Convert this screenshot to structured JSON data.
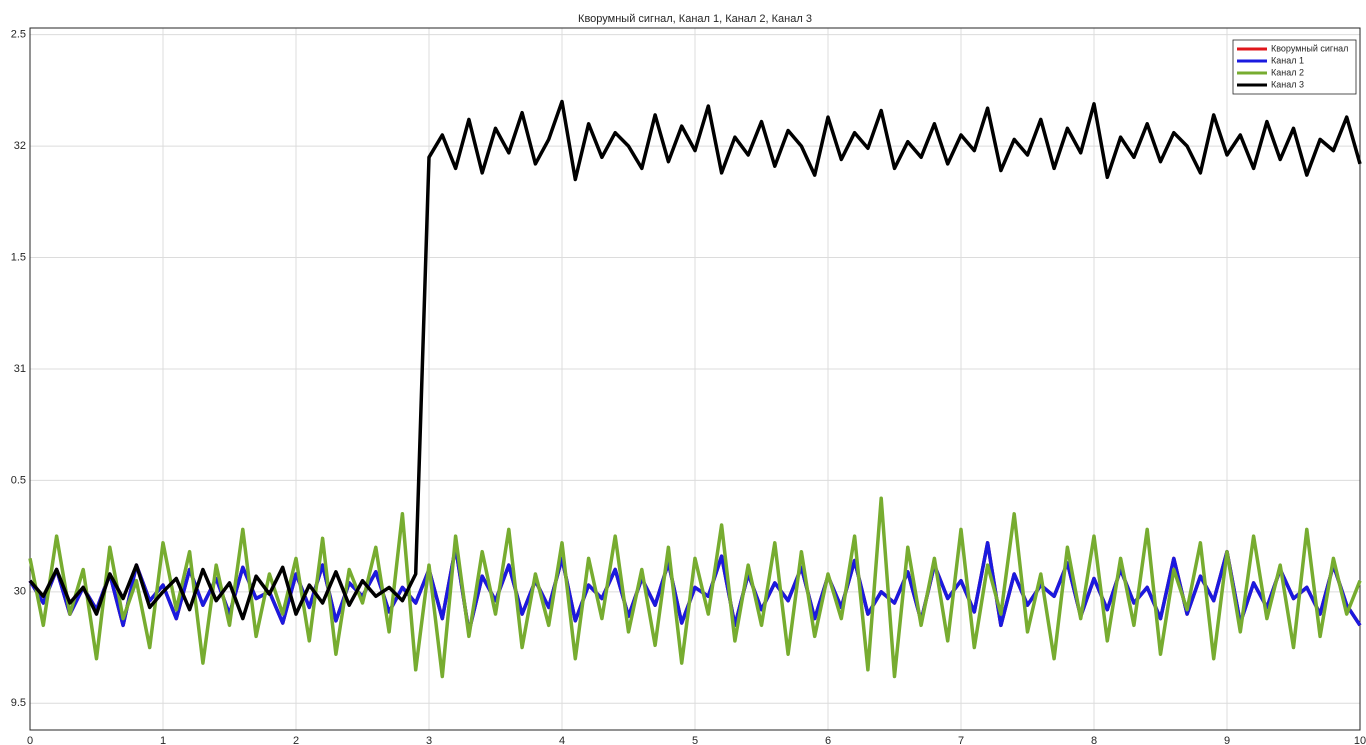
{
  "chart_data": {
    "type": "line",
    "title": "Кворумный сигнал, Канал 1, Канал 2, Канал 3",
    "x": [
      0,
      0.1,
      0.2,
      0.3,
      0.4,
      0.5,
      0.6,
      0.7,
      0.8,
      0.9,
      1,
      1.1,
      1.2,
      1.3,
      1.4,
      1.5,
      1.6,
      1.7,
      1.8,
      1.9,
      2,
      2.1,
      2.2,
      2.3,
      2.4,
      2.5,
      2.6,
      2.7,
      2.8,
      2.9,
      3,
      3.1,
      3.2,
      3.3,
      3.4,
      3.5,
      3.6,
      3.7,
      3.8,
      3.9,
      4,
      4.1,
      4.2,
      4.3,
      4.4,
      4.5,
      4.6,
      4.7,
      4.8,
      4.9,
      5,
      5.1,
      5.2,
      5.3,
      5.4,
      5.5,
      5.6,
      5.7,
      5.8,
      5.9,
      6,
      6.1,
      6.2,
      6.3,
      6.4,
      6.5,
      6.6,
      6.7,
      6.8,
      6.9,
      7,
      7.1,
      7.2,
      7.3,
      7.4,
      7.5,
      7.6,
      7.7,
      7.8,
      7.9,
      8,
      8.1,
      8.2,
      8.3,
      8.4,
      8.5,
      8.6,
      8.7,
      8.8,
      8.9,
      9,
      9.1,
      9.2,
      9.3,
      9.4,
      9.5,
      9.6,
      9.7,
      9.8,
      9.9,
      10
    ],
    "series": [
      {
        "name": "Кворумный сигнал",
        "color": "#e0161b",
        "values": [
          30.05,
          29.95,
          30.1,
          29.9,
          30.02,
          29.92,
          30.08,
          29.85,
          30.12,
          29.96,
          30.03,
          29.88,
          30.1,
          29.94,
          30.06,
          29.9,
          30.11,
          29.97,
          30.0,
          29.86,
          30.08,
          29.93,
          30.12,
          29.87,
          30.04,
          29.98,
          30.09,
          29.91,
          30.02,
          29.95,
          30.1,
          29.88,
          30.2,
          29.82,
          30.07,
          29.96,
          30.12,
          29.9,
          30.05,
          29.93,
          30.15,
          29.87,
          30.03,
          29.97,
          30.1,
          29.89,
          30.06,
          29.94,
          30.13,
          29.86,
          30.02,
          29.98,
          30.16,
          29.85,
          30.08,
          29.92,
          30.04,
          29.96,
          30.11,
          29.88,
          30.07,
          29.93,
          30.14,
          29.9,
          30.0,
          29.95,
          30.09,
          29.87,
          30.12,
          29.97,
          30.05,
          29.91,
          30.22,
          29.85,
          30.08,
          29.94,
          30.03,
          29.98,
          30.13,
          29.89,
          30.06,
          29.92,
          30.1,
          29.95,
          30.02,
          29.88,
          30.15,
          29.9,
          30.07,
          29.96,
          30.18,
          29.86,
          30.04,
          29.93,
          30.1,
          29.97,
          30.02,
          29.9,
          30.12,
          29.94,
          29.85
        ]
      },
      {
        "name": "Канал 1",
        "color": "#1a1adf",
        "values": [
          30.05,
          29.95,
          30.1,
          29.9,
          30.02,
          29.92,
          30.08,
          29.85,
          30.12,
          29.96,
          30.03,
          29.88,
          30.1,
          29.94,
          30.06,
          29.9,
          30.11,
          29.97,
          30.0,
          29.86,
          30.08,
          29.93,
          30.12,
          29.87,
          30.04,
          29.98,
          30.09,
          29.91,
          30.02,
          29.95,
          30.1,
          29.88,
          30.2,
          29.82,
          30.07,
          29.96,
          30.12,
          29.9,
          30.05,
          29.93,
          30.15,
          29.87,
          30.03,
          29.97,
          30.1,
          29.89,
          30.06,
          29.94,
          30.13,
          29.86,
          30.02,
          29.98,
          30.16,
          29.85,
          30.08,
          29.92,
          30.04,
          29.96,
          30.11,
          29.88,
          30.07,
          29.93,
          30.14,
          29.9,
          30.0,
          29.95,
          30.09,
          29.87,
          30.12,
          29.97,
          30.05,
          29.91,
          30.22,
          29.85,
          30.08,
          29.94,
          30.03,
          29.98,
          30.13,
          29.89,
          30.06,
          29.92,
          30.1,
          29.95,
          30.02,
          29.88,
          30.15,
          29.9,
          30.07,
          29.96,
          30.18,
          29.86,
          30.04,
          29.93,
          30.1,
          29.97,
          30.02,
          29.9,
          30.12,
          29.94,
          29.85
        ]
      },
      {
        "name": "Канал 2",
        "color": "#77ac30",
        "values": [
          30.15,
          29.85,
          30.25,
          29.9,
          30.1,
          29.7,
          30.2,
          29.88,
          30.05,
          29.75,
          30.22,
          29.92,
          30.18,
          29.68,
          30.12,
          29.85,
          30.28,
          29.8,
          30.08,
          29.9,
          30.15,
          29.78,
          30.24,
          29.72,
          30.1,
          29.95,
          30.2,
          29.82,
          30.35,
          29.65,
          30.12,
          29.62,
          30.25,
          29.8,
          30.18,
          29.9,
          30.28,
          29.75,
          30.08,
          29.85,
          30.22,
          29.7,
          30.15,
          29.88,
          30.25,
          29.82,
          30.1,
          29.76,
          30.2,
          29.68,
          30.15,
          29.9,
          30.3,
          29.78,
          30.12,
          29.85,
          30.22,
          29.72,
          30.18,
          29.8,
          30.08,
          29.88,
          30.25,
          29.65,
          30.42,
          29.62,
          30.2,
          29.85,
          30.15,
          29.78,
          30.28,
          29.75,
          30.12,
          29.9,
          30.35,
          29.82,
          30.08,
          29.7,
          30.2,
          29.88,
          30.25,
          29.78,
          30.15,
          29.85,
          30.28,
          29.72,
          30.1,
          29.92,
          30.22,
          29.7,
          30.18,
          29.82,
          30.25,
          29.88,
          30.12,
          29.75,
          30.28,
          29.8,
          30.15,
          29.9,
          30.05
        ]
      },
      {
        "name": "Канал 3",
        "color": "#000000",
        "values": [
          30.05,
          29.98,
          30.1,
          29.95,
          30.02,
          29.9,
          30.08,
          29.97,
          30.12,
          29.93,
          30.0,
          30.06,
          29.92,
          30.1,
          29.96,
          30.04,
          29.88,
          30.07,
          29.99,
          30.11,
          29.9,
          30.03,
          29.95,
          30.09,
          29.94,
          30.05,
          29.98,
          30.02,
          29.96,
          30.08,
          31.95,
          32.05,
          31.9,
          32.12,
          31.88,
          32.08,
          31.97,
          32.15,
          31.92,
          32.03,
          32.2,
          31.85,
          32.1,
          31.95,
          32.06,
          32.0,
          31.9,
          32.14,
          31.93,
          32.09,
          31.98,
          32.18,
          31.88,
          32.04,
          31.96,
          32.11,
          31.91,
          32.07,
          32.0,
          31.87,
          32.13,
          31.94,
          32.06,
          31.99,
          32.16,
          31.9,
          32.02,
          31.95,
          32.1,
          31.92,
          32.05,
          31.98,
          32.17,
          31.89,
          32.03,
          31.96,
          32.12,
          31.9,
          32.08,
          31.97,
          32.19,
          31.86,
          32.04,
          31.95,
          32.1,
          31.93,
          32.06,
          32.0,
          31.88,
          32.14,
          31.96,
          32.05,
          31.9,
          32.11,
          31.94,
          32.08,
          31.87,
          32.03,
          31.98,
          32.13,
          31.92
        ]
      }
    ],
    "xlim": [
      0,
      10
    ],
    "xticks": [
      0,
      1,
      2,
      3,
      4,
      5,
      6,
      7,
      8,
      9,
      10
    ],
    "ylim": [
      29.38,
      32.53
    ],
    "yticks": [
      {
        "value": 32.5,
        "label": "2.5"
      },
      32,
      {
        "value": 31.5,
        "label": "1.5"
      },
      31,
      {
        "value": 30.5,
        "label": "0.5"
      },
      30,
      {
        "value": 29.5,
        "label": "9.5"
      }
    ],
    "grid": true,
    "legend": "northeast"
  }
}
